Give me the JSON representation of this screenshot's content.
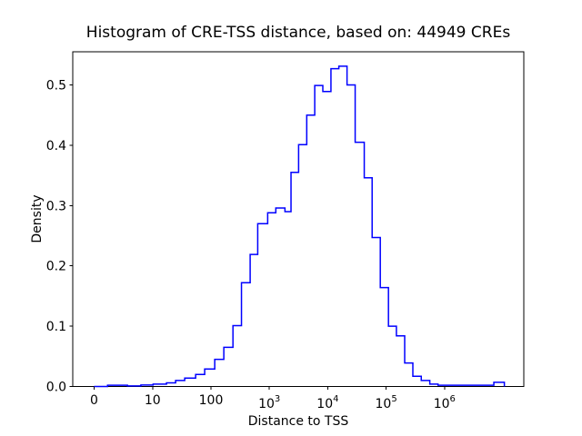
{
  "chart_data": {
    "type": "bar",
    "subtype": "step-histogram",
    "title": "Histogram of CRE-TSS distance, based on: 44949 CREs",
    "xlabel": "Distance to TSS",
    "ylabel": "Density",
    "x_scale": "symlog",
    "x_linthresh": 10,
    "xlim": [
      -3.6,
      22000000
    ],
    "ylim": [
      0,
      0.556
    ],
    "grid": false,
    "legend": "none",
    "line_color": "#0000ff",
    "axis_color": "#000000",
    "background_color": "#ffffff",
    "n_cres": "44949",
    "x_ticks": [
      {
        "v": 0,
        "base": "0",
        "exp": ""
      },
      {
        "v": 10,
        "base": "10",
        "exp": ""
      },
      {
        "v": 100,
        "base": "100",
        "exp": ""
      },
      {
        "v": 1000,
        "base": "10",
        "exp": "3"
      },
      {
        "v": 10000,
        "base": "10",
        "exp": "4"
      },
      {
        "v": 100000,
        "base": "10",
        "exp": "5"
      },
      {
        "v": 1000000,
        "base": "10",
        "exp": "6"
      }
    ],
    "y_ticks": [
      {
        "v": 0.0,
        "label": "0.0"
      },
      {
        "v": 0.1,
        "label": "0.1"
      },
      {
        "v": 0.2,
        "label": "0.2"
      },
      {
        "v": 0.3,
        "label": "0.3"
      },
      {
        "v": 0.4,
        "label": "0.4"
      },
      {
        "v": 0.5,
        "label": "0.5"
      }
    ],
    "steps_note": "each entry: left bin edge x (distance to TSS) and density level held until the next edge",
    "steps": [
      {
        "x": 0,
        "d": 0
      },
      {
        "x": 2.3,
        "d": 0.002
      },
      {
        "x": 5.7,
        "d": 0.001
      },
      {
        "x": 8.0,
        "d": 0.0025
      },
      {
        "x": 10.2,
        "d": 0.004
      },
      {
        "x": 17.3,
        "d": 0.006
      },
      {
        "x": 24.8,
        "d": 0.01
      },
      {
        "x": 35.5,
        "d": 0.014
      },
      {
        "x": 54.6,
        "d": 0.02
      },
      {
        "x": 78,
        "d": 0.029
      },
      {
        "x": 116,
        "d": 0.045
      },
      {
        "x": 166,
        "d": 0.065
      },
      {
        "x": 238,
        "d": 0.101
      },
      {
        "x": 333,
        "d": 0.172
      },
      {
        "x": 469,
        "d": 0.219
      },
      {
        "x": 632,
        "d": 0.27
      },
      {
        "x": 936,
        "d": 0.288
      },
      {
        "x": 1290,
        "d": 0.296
      },
      {
        "x": 1850,
        "d": 0.29
      },
      {
        "x": 2350,
        "d": 0.355
      },
      {
        "x": 3170,
        "d": 0.401
      },
      {
        "x": 4370,
        "d": 0.45
      },
      {
        "x": 5990,
        "d": 0.499
      },
      {
        "x": 8240,
        "d": 0.489
      },
      {
        "x": 11350,
        "d": 0.527
      },
      {
        "x": 15500,
        "d": 0.531
      },
      {
        "x": 21400,
        "d": 0.5
      },
      {
        "x": 29500,
        "d": 0.405
      },
      {
        "x": 42200,
        "d": 0.346
      },
      {
        "x": 57600,
        "d": 0.247
      },
      {
        "x": 79500,
        "d": 0.164
      },
      {
        "x": 109700,
        "d": 0.1
      },
      {
        "x": 150000,
        "d": 0.084
      },
      {
        "x": 208000,
        "d": 0.039
      },
      {
        "x": 287000,
        "d": 0.017
      },
      {
        "x": 400000,
        "d": 0.01
      },
      {
        "x": 560000,
        "d": 0.004
      },
      {
        "x": 775000,
        "d": 0.002
      },
      {
        "x": 7000000,
        "d": 0.007
      },
      {
        "x": 10600000,
        "d": 0
      }
    ]
  }
}
